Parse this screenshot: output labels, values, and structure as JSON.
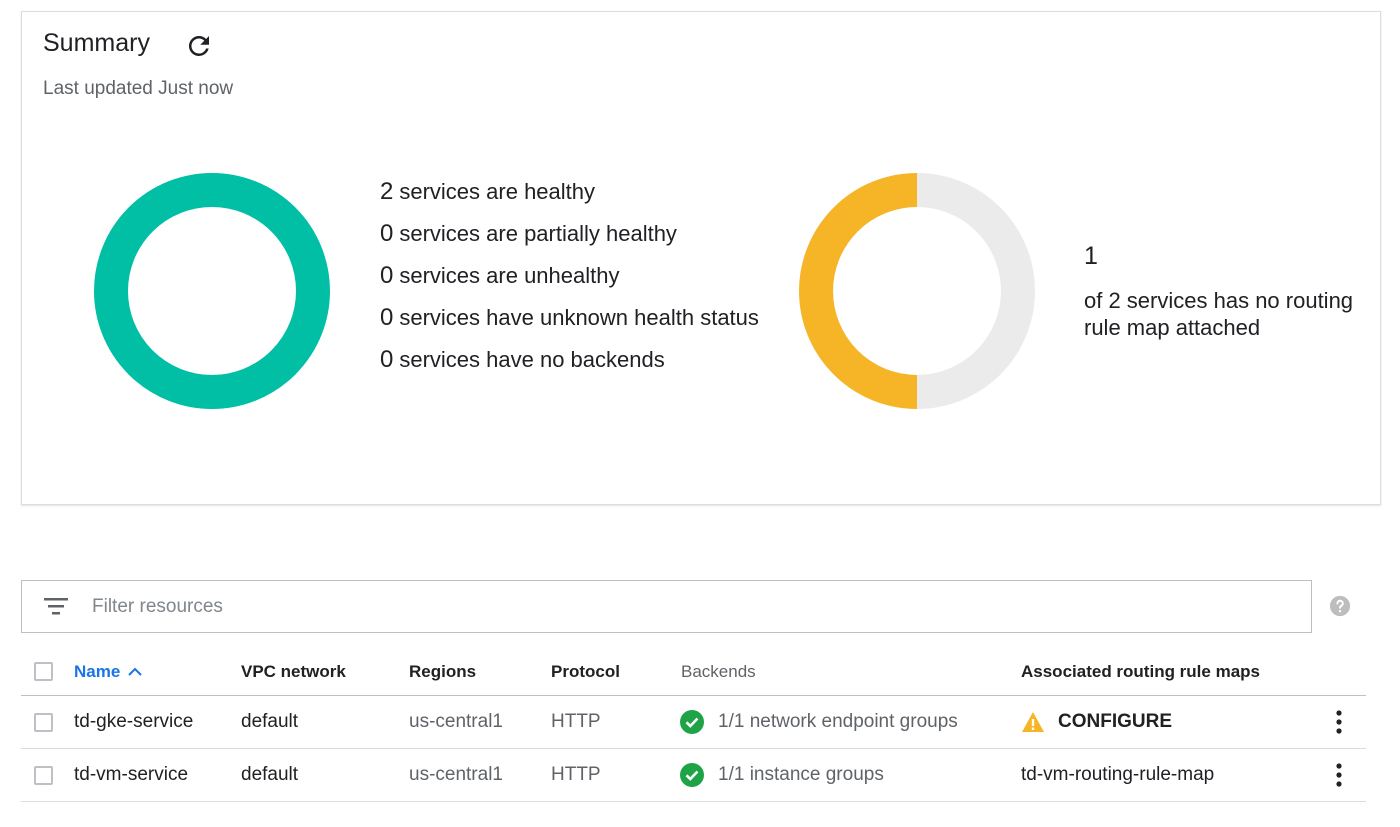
{
  "summary": {
    "title": "Summary",
    "last_updated": "Last updated Just now",
    "health": {
      "items": [
        {
          "count": "2",
          "text": "services are healthy"
        },
        {
          "count": "0",
          "text": "services are partially healthy"
        },
        {
          "count": "0",
          "text": "services are unhealthy"
        },
        {
          "count": "0",
          "text": "services have unknown health status"
        },
        {
          "count": "0",
          "text": "services have no backends"
        }
      ],
      "healthy_fraction": 1.0,
      "color": "#00bfa5"
    },
    "routing": {
      "count": "1",
      "text": "of 2 services has no routing rule map attached",
      "fraction": 0.5,
      "color": "#f6b526",
      "track_color": "#ebebeb"
    }
  },
  "filter": {
    "placeholder": "Filter resources",
    "value": ""
  },
  "table": {
    "headers": {
      "name": "Name",
      "vpc": "VPC network",
      "regions": "Regions",
      "protocol": "Protocol",
      "backends": "Backends",
      "routing": "Associated routing rule maps"
    },
    "rows": [
      {
        "name": "td-gke-service",
        "vpc": "default",
        "region": "us-central1",
        "protocol": "HTTP",
        "backends": "1/1 network endpoint groups",
        "routing": "CONFIGURE",
        "routing_status": "warning"
      },
      {
        "name": "td-vm-service",
        "vpc": "default",
        "region": "us-central1",
        "protocol": "HTTP",
        "backends": "1/1 instance groups",
        "routing": "td-vm-routing-rule-map",
        "routing_status": "attached"
      }
    ]
  },
  "colors": {
    "accent_blue": "#1a73e8",
    "ok_green": "#1ea446",
    "warning_yellow": "#f6b526"
  }
}
